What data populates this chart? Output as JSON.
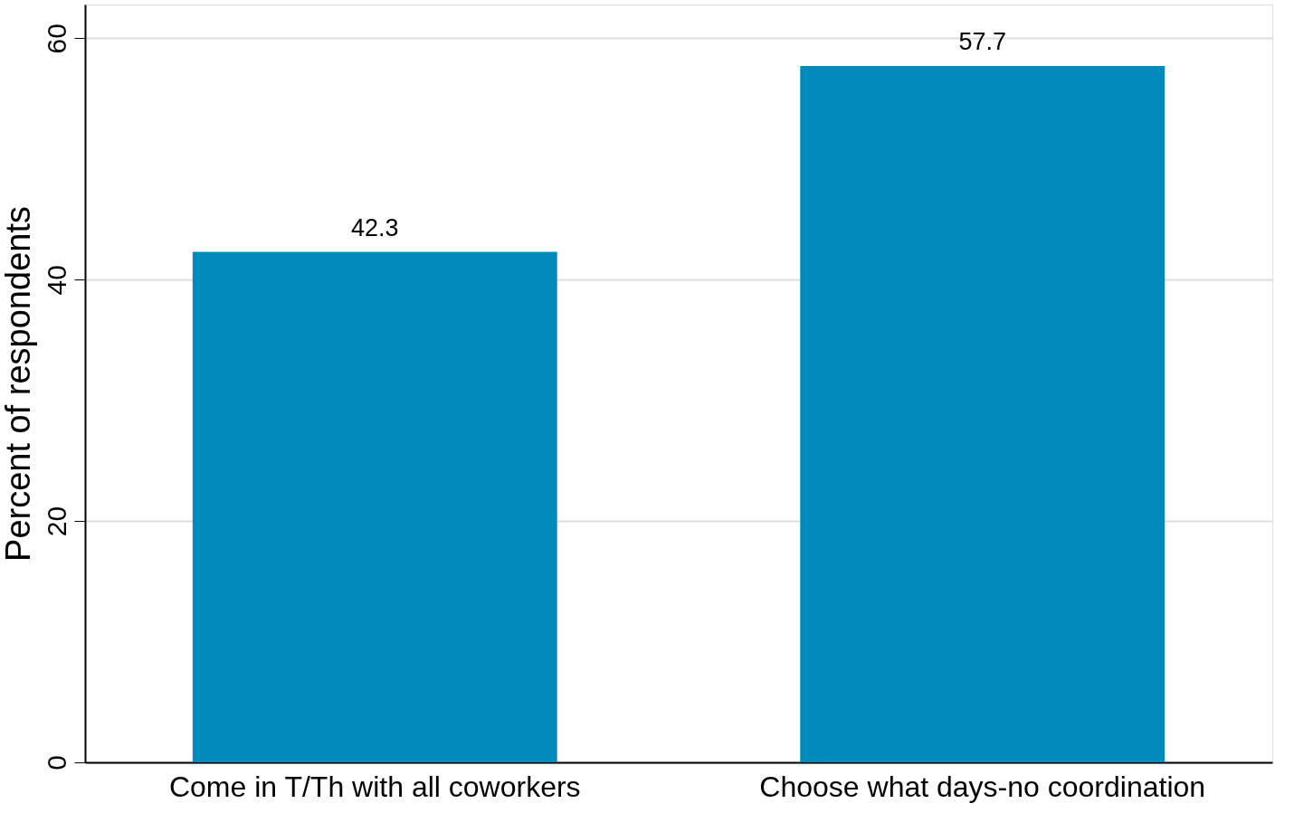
{
  "chart_data": {
    "type": "bar",
    "ylabel": "Percent of respondents",
    "categories": [
      "Come in T/Th with all coworkers",
      "Choose what days-no coordination"
    ],
    "values": [
      42.3,
      57.7
    ],
    "color": "#008bbc",
    "ylim": [
      0,
      62.8
    ],
    "yticks": [
      0,
      20,
      40,
      60
    ],
    "grid": "y",
    "data_labels": true
  }
}
